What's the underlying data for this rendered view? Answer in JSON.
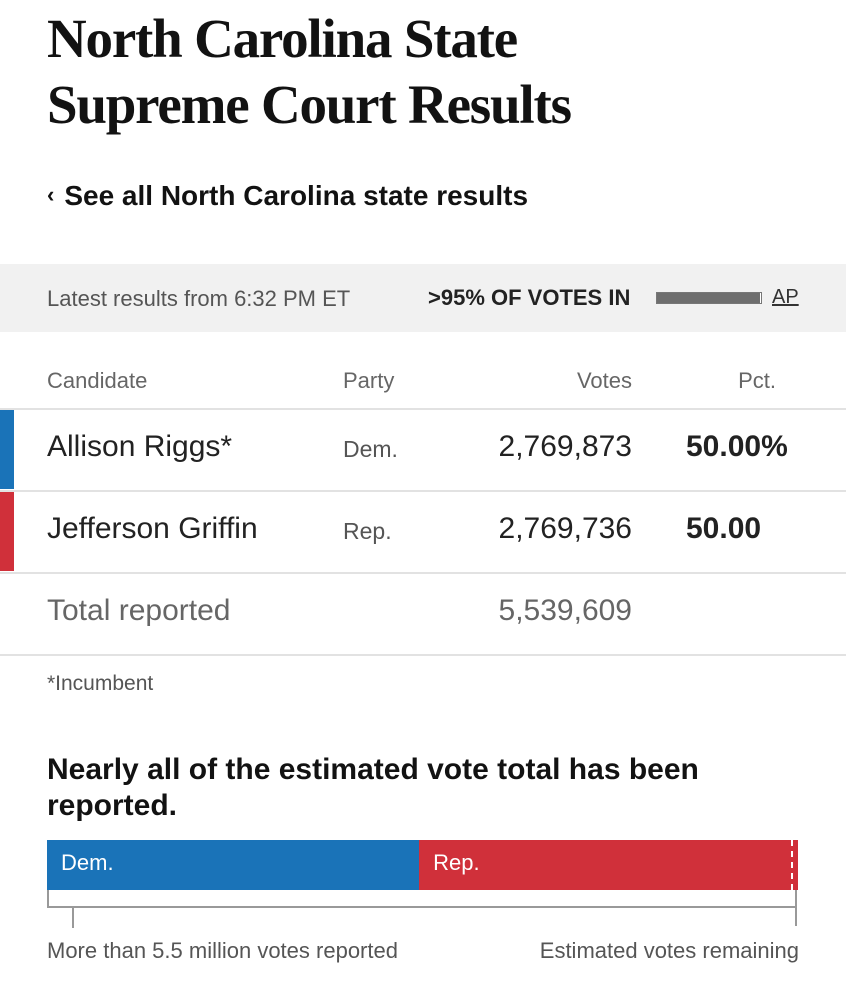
{
  "page": {
    "title_line1": "North Carolina State",
    "title_line2": "Supreme Court Results",
    "back_chevron": "‹",
    "back_link": "See all North Carolina state results"
  },
  "status": {
    "latest": "Latest results from 6:32 PM ET",
    "reporting": ">95% OF VOTES IN",
    "reporting_fraction": 0.99,
    "source": "AP"
  },
  "table": {
    "headers": {
      "candidate": "Candidate",
      "party": "Party",
      "votes": "Votes",
      "pct": "Pct."
    },
    "rows": [
      {
        "candidate": "Allison Riggs*",
        "party": "Dem.",
        "votes": "2,769,873",
        "pct": "50.00%",
        "color": "#1a73b8"
      },
      {
        "candidate": "Jefferson Griffin",
        "party": "Rep.",
        "votes": "2,769,736",
        "pct": "50.00",
        "color": "#d0303a"
      }
    ],
    "total": {
      "label": "Total reported",
      "votes": "5,539,609"
    },
    "footnote": "*Incumbent"
  },
  "summary": {
    "headline": "Nearly all of the estimated vote total has been reported.",
    "bar": {
      "dem_label": "Dem.",
      "rep_label": "Rep.",
      "dem_color": "#1a73b8",
      "rep_color": "#d0303a",
      "dem_share": 0.4955,
      "rep_share": 0.4955,
      "remaining_share": 0.009
    },
    "left_label": "More than 5.5 million votes reported",
    "right_label": "Estimated votes remaining"
  }
}
